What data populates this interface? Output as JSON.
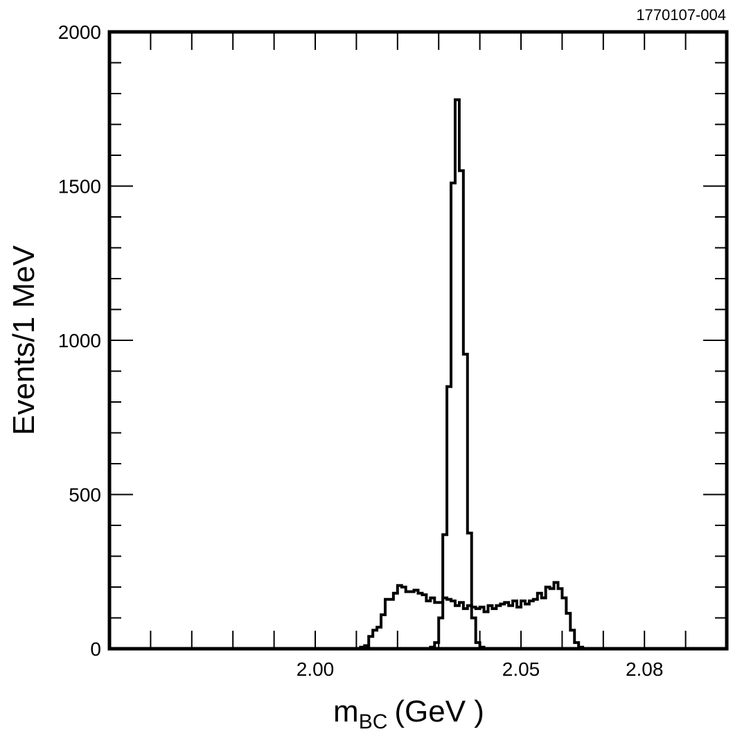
{
  "figure_id": "1770107-004",
  "chart_data": {
    "type": "step",
    "xlabel_main": "m",
    "xlabel_sub": "BC",
    "xlabel_unit": "(GeV )",
    "ylabel": "Events/1 MeV",
    "xlim": [
      1.95,
      2.1
    ],
    "ylim": [
      0,
      2000
    ],
    "x_tick_labels": [
      {
        "value": 2.0,
        "label": "2.00"
      },
      {
        "value": 2.05,
        "label": "2.05"
      },
      {
        "value": 2.08,
        "label": "2.08"
      }
    ],
    "y_tick_labels": [
      {
        "value": 0,
        "label": "0"
      },
      {
        "value": 500,
        "label": "500"
      },
      {
        "value": 1000,
        "label": "1000"
      },
      {
        "value": 1500,
        "label": "1500"
      },
      {
        "value": 2000,
        "label": "2000"
      }
    ],
    "x_minor_ticks": [
      1.96,
      1.97,
      1.98,
      1.99,
      2.0,
      2.01,
      2.02,
      2.03,
      2.04,
      2.05,
      2.06,
      2.07,
      2.08,
      2.09
    ],
    "y_minor_step": 100,
    "bin_width": 0.001,
    "series": [
      {
        "x_start": 2.028,
        "values": [
          5,
          20,
          100,
          370,
          850,
          1510,
          1780,
          1550,
          955,
          375,
          100,
          20,
          5
        ]
      },
      {
        "x_start": 2.011,
        "values": [
          5,
          10,
          40,
          60,
          70,
          110,
          160,
          160,
          180,
          205,
          200,
          185,
          185,
          190,
          180,
          175,
          155,
          165,
          150,
          150,
          165,
          160,
          155,
          140,
          150,
          130,
          140,
          135,
          130,
          135,
          120,
          140,
          130,
          140,
          145,
          150,
          140,
          155,
          135,
          155,
          145,
          155,
          160,
          180,
          165,
          200,
          195,
          215,
          195,
          165,
          115,
          60,
          20,
          5
        ]
      }
    ]
  }
}
